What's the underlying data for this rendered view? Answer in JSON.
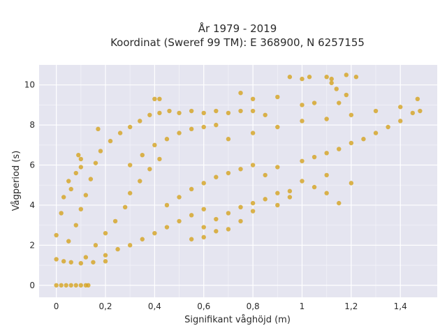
{
  "chart_data": {
    "type": "scatter",
    "title_line1": "År 1979 - 2019",
    "title_line2": "Koordinat (Sweref 99 TM): E 368900, N 6257155",
    "xlabel": "Signifikant våghöjd (m)",
    "ylabel": "Vågperiod (s)",
    "xlim": [
      -0.07,
      1.55
    ],
    "ylim": [
      -0.6,
      11.0
    ],
    "x_ticks": [
      0,
      0.2,
      0.4,
      0.6,
      0.8,
      1.0,
      1.2,
      1.4
    ],
    "x_tick_labels": [
      "0",
      "0,2",
      "0,4",
      "0,6",
      "0,8",
      "1",
      "1,2",
      "1,4"
    ],
    "y_ticks": [
      0,
      2,
      4,
      6,
      8,
      10
    ],
    "y_tick_labels": [
      "0",
      "2",
      "4",
      "6",
      "8",
      "10"
    ],
    "grid": true,
    "marker_color": "#D4A21F",
    "plot_background": "#E5E5F0",
    "series": [
      {
        "points": [
          [
            0.0,
            0.0
          ],
          [
            0.02,
            0.0
          ],
          [
            0.04,
            0.0
          ],
          [
            0.06,
            0.0
          ],
          [
            0.08,
            0.0
          ],
          [
            0.1,
            0.0
          ],
          [
            0.12,
            0.0
          ],
          [
            0.13,
            0.0
          ],
          [
            0.0,
            1.3
          ],
          [
            0.03,
            1.2
          ],
          [
            0.06,
            1.15
          ],
          [
            0.1,
            1.1
          ],
          [
            0.15,
            1.15
          ],
          [
            0.2,
            1.2
          ],
          [
            0.0,
            2.5
          ],
          [
            0.02,
            3.6
          ],
          [
            0.03,
            4.4
          ],
          [
            0.05,
            5.2
          ],
          [
            0.06,
            4.8
          ],
          [
            0.08,
            5.6
          ],
          [
            0.1,
            5.9
          ],
          [
            0.09,
            6.5
          ],
          [
            0.1,
            6.3
          ],
          [
            0.05,
            2.2
          ],
          [
            0.08,
            3.0
          ],
          [
            0.1,
            3.8
          ],
          [
            0.12,
            4.5
          ],
          [
            0.14,
            5.3
          ],
          [
            0.16,
            6.1
          ],
          [
            0.18,
            6.7
          ],
          [
            0.17,
            7.8
          ],
          [
            0.12,
            1.4
          ],
          [
            0.16,
            2.0
          ],
          [
            0.2,
            2.6
          ],
          [
            0.24,
            3.2
          ],
          [
            0.28,
            3.9
          ],
          [
            0.3,
            4.6
          ],
          [
            0.34,
            5.2
          ],
          [
            0.38,
            5.8
          ],
          [
            0.42,
            6.3
          ],
          [
            0.2,
            1.5
          ],
          [
            0.25,
            1.8
          ],
          [
            0.3,
            2.0
          ],
          [
            0.35,
            2.3
          ],
          [
            0.4,
            2.6
          ],
          [
            0.45,
            2.9
          ],
          [
            0.5,
            3.2
          ],
          [
            0.55,
            3.5
          ],
          [
            0.6,
            3.8
          ],
          [
            0.22,
            7.2
          ],
          [
            0.26,
            7.6
          ],
          [
            0.3,
            7.9
          ],
          [
            0.34,
            8.2
          ],
          [
            0.38,
            8.5
          ],
          [
            0.42,
            8.6
          ],
          [
            0.46,
            8.7
          ],
          [
            0.5,
            8.6
          ],
          [
            0.55,
            8.7
          ],
          [
            0.6,
            8.6
          ],
          [
            0.65,
            8.7
          ],
          [
            0.7,
            8.6
          ],
          [
            0.75,
            8.7
          ],
          [
            0.8,
            8.7
          ],
          [
            0.85,
            8.5
          ],
          [
            0.4,
            9.3
          ],
          [
            0.42,
            9.3
          ],
          [
            0.3,
            6.0
          ],
          [
            0.35,
            6.5
          ],
          [
            0.4,
            7.0
          ],
          [
            0.45,
            7.3
          ],
          [
            0.5,
            7.6
          ],
          [
            0.55,
            7.8
          ],
          [
            0.6,
            7.9
          ],
          [
            0.65,
            8.0
          ],
          [
            0.45,
            4.0
          ],
          [
            0.5,
            4.4
          ],
          [
            0.55,
            4.8
          ],
          [
            0.6,
            5.1
          ],
          [
            0.65,
            5.4
          ],
          [
            0.7,
            5.6
          ],
          [
            0.75,
            5.8
          ],
          [
            0.8,
            6.0
          ],
          [
            0.6,
            2.9
          ],
          [
            0.65,
            3.3
          ],
          [
            0.7,
            3.6
          ],
          [
            0.75,
            3.9
          ],
          [
            0.8,
            4.1
          ],
          [
            0.85,
            4.3
          ],
          [
            0.9,
            4.6
          ],
          [
            0.95,
            4.7
          ],
          [
            0.7,
            7.3
          ],
          [
            0.8,
            7.6
          ],
          [
            0.9,
            7.9
          ],
          [
            1.0,
            8.2
          ],
          [
            1.1,
            8.3
          ],
          [
            1.2,
            8.5
          ],
          [
            1.3,
            8.7
          ],
          [
            1.4,
            8.9
          ],
          [
            1.47,
            9.3
          ],
          [
            0.85,
            5.5
          ],
          [
            0.9,
            5.9
          ],
          [
            1.0,
            6.2
          ],
          [
            1.05,
            6.4
          ],
          [
            1.1,
            6.6
          ],
          [
            1.15,
            6.8
          ],
          [
            1.2,
            7.1
          ],
          [
            1.25,
            7.3
          ],
          [
            1.3,
            7.6
          ],
          [
            1.35,
            7.9
          ],
          [
            1.4,
            8.2
          ],
          [
            1.45,
            8.6
          ],
          [
            1.48,
            8.7
          ],
          [
            0.95,
            10.4
          ],
          [
            1.0,
            10.3
          ],
          [
            1.03,
            10.4
          ],
          [
            1.1,
            10.4
          ],
          [
            1.12,
            10.3
          ],
          [
            1.18,
            10.5
          ],
          [
            1.22,
            10.4
          ],
          [
            1.12,
            10.1
          ],
          [
            1.14,
            9.8
          ],
          [
            1.18,
            9.5
          ],
          [
            0.75,
            9.6
          ],
          [
            0.8,
            9.3
          ],
          [
            0.9,
            9.4
          ],
          [
            1.0,
            9.0
          ],
          [
            1.05,
            9.1
          ],
          [
            1.15,
            9.1
          ],
          [
            1.05,
            4.9
          ],
          [
            1.1,
            4.6
          ],
          [
            1.15,
            4.1
          ],
          [
            1.2,
            5.1
          ],
          [
            1.1,
            5.5
          ],
          [
            1.0,
            5.2
          ],
          [
            0.95,
            4.4
          ],
          [
            0.9,
            4.0
          ],
          [
            0.8,
            3.7
          ],
          [
            0.75,
            3.2
          ],
          [
            0.7,
            2.8
          ],
          [
            0.65,
            2.7
          ],
          [
            0.6,
            2.4
          ],
          [
            0.55,
            2.3
          ]
        ]
      }
    ]
  }
}
